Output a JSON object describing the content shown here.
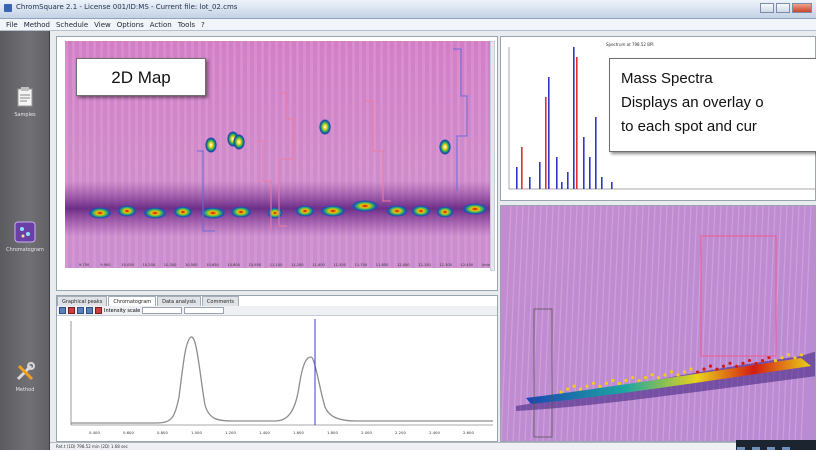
{
  "window": {
    "title": "ChromSquare 2.1 - License 001/ID:MS - Current file: lot_02.cms"
  },
  "menu": [
    "File",
    "Method",
    "Schedule",
    "View",
    "Options",
    "Action",
    "Tools",
    "?"
  ],
  "sidebar": {
    "items": [
      {
        "label": "Samples",
        "icon": "clipboard-icon"
      },
      {
        "label": "Chromatogram",
        "icon": "chromatogram-icon"
      },
      {
        "label": "Method",
        "icon": "tools-icon"
      }
    ]
  },
  "map": {
    "xticks": [
      "9.750",
      "9.900",
      "10.050",
      "10.200",
      "10.350",
      "10.500",
      "10.650",
      "10.800",
      "10.950",
      "11.100",
      "11.250",
      "11.400",
      "11.550",
      "11.700",
      "11.850",
      "12.000",
      "12.150",
      "12.300",
      "12.450",
      "(min)"
    ]
  },
  "chromatogram": {
    "tabs": [
      "Graphical peaks",
      "Chromatogram",
      "Data analysis",
      "Comments"
    ],
    "toolbar_label": "Intensity scale",
    "xticks": [
      "0.400",
      "0.600",
      "0.800",
      "1.000",
      "1.200",
      "1.400",
      "1.600",
      "1.800",
      "2.000",
      "2.200",
      "2.400",
      "2.600",
      "(sec)"
    ]
  },
  "spectrum": {
    "title": "Spectrum at 798.52 BPI"
  },
  "callouts": {
    "map": "2D Map",
    "ms_title": "Mass Spectra",
    "ms_line1": "Displays an overlay o",
    "ms_line2": "to each spot and cur"
  },
  "status": {
    "text": "Ret.t (1D) 798.52 min (2D) 1.68 sec"
  },
  "colors": {
    "map_background": "#d58ec6",
    "hotspot": "#d40000",
    "sidebar": "#67676c",
    "trace_blue": "#2e38c8",
    "trace_red": "#e0302a"
  }
}
